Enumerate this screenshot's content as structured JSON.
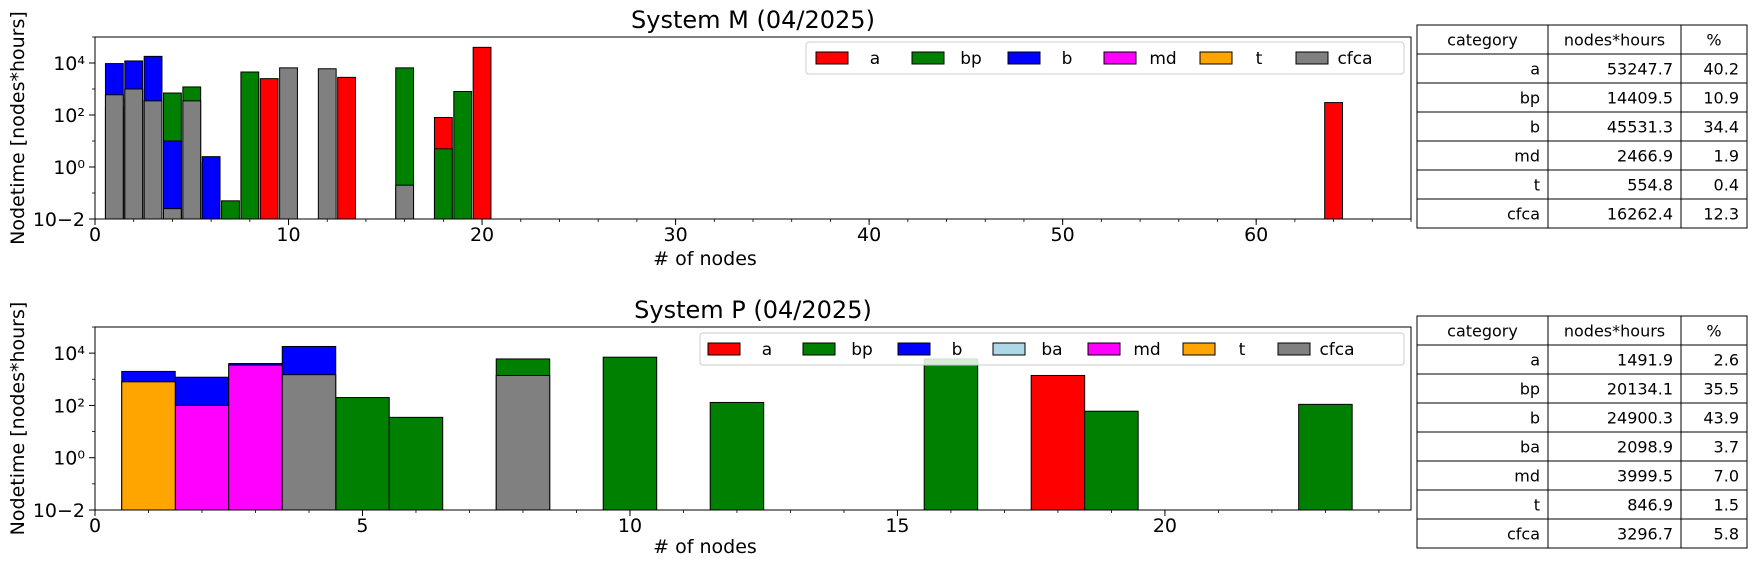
{
  "colors": {
    "a": "#ff0000",
    "bp": "#008000",
    "b": "#0000ff",
    "ba": "#add8e6",
    "md": "#ff00ff",
    "t": "#ffa500",
    "cfca": "#808080"
  },
  "chart_data": [
    {
      "type": "bar",
      "title": "System M (04/2025)",
      "xlabel": "# of nodes",
      "ylabel": "Nodetime [nodes*hours]",
      "yscale": "log",
      "ylim": [
        0.01,
        100000
      ],
      "xlim": [
        0,
        68
      ],
      "xticks": [
        0,
        10,
        20,
        30,
        40,
        50,
        60
      ],
      "xtick_labels": [
        "0",
        "10",
        "20",
        "30",
        "40",
        "50",
        "60"
      ],
      "yticks": [
        0.01,
        1,
        100,
        10000
      ],
      "ytick_labels": [
        "10−2",
        "10⁰",
        "10²",
        "10⁴"
      ],
      "legend": [
        "a",
        "bp",
        "b",
        "md",
        "t",
        "cfca"
      ],
      "legend_placement": "top-right",
      "grid": false,
      "x": [
        1,
        2,
        3,
        4,
        5,
        6,
        7,
        8,
        9,
        10,
        12,
        13,
        16,
        18,
        19,
        20,
        64
      ],
      "series": [
        {
          "name": "a",
          "values": [
            0,
            0,
            0,
            0,
            0,
            1.5,
            0,
            0,
            2500,
            0,
            0,
            2800,
            0,
            80,
            0,
            40000,
            300
          ]
        },
        {
          "name": "bp",
          "values": [
            0,
            0,
            0,
            700,
            1200,
            0,
            0.05,
            4500,
            0,
            0,
            0,
            0,
            6500,
            5,
            800,
            0,
            0
          ]
        },
        {
          "name": "b",
          "values": [
            9500,
            12000,
            18000,
            10,
            0,
            2.5,
            0,
            0,
            0,
            0,
            0,
            0,
            0,
            0,
            0,
            0,
            0
          ]
        },
        {
          "name": "md",
          "values": [
            200,
            400,
            0,
            0,
            0,
            0,
            0,
            0,
            0,
            0,
            0,
            0,
            0,
            0,
            0,
            0,
            0
          ]
        },
        {
          "name": "t",
          "values": [
            0,
            0,
            0,
            0,
            0,
            0,
            0,
            0,
            0,
            0,
            0,
            0,
            0,
            0,
            0,
            0,
            0
          ]
        },
        {
          "name": "cfca",
          "values": [
            600,
            1000,
            350,
            0.025,
            350,
            0,
            0,
            0,
            0,
            6500,
            6000,
            0,
            0.2,
            0,
            0,
            0,
            0
          ]
        }
      ],
      "table": {
        "headers": [
          "category",
          "nodes*hours",
          "%"
        ],
        "rows": [
          [
            "a",
            "53247.7",
            "40.2"
          ],
          [
            "bp",
            "14409.5",
            "10.9"
          ],
          [
            "b",
            "45531.3",
            "34.4"
          ],
          [
            "md",
            "2466.9",
            "1.9"
          ],
          [
            "t",
            "554.8",
            "0.4"
          ],
          [
            "cfca",
            "16262.4",
            "12.3"
          ]
        ]
      }
    },
    {
      "type": "bar",
      "title": "System P (04/2025)",
      "xlabel": "# of nodes",
      "ylabel": "Nodetime [nodes*hours]",
      "yscale": "log",
      "ylim": [
        0.01,
        100000
      ],
      "xlim": [
        0,
        24.6
      ],
      "xticks": [
        0,
        5,
        10,
        15,
        20
      ],
      "xtick_labels": [
        "0",
        "5",
        "10",
        "15",
        "20"
      ],
      "yticks": [
        0.01,
        1,
        100,
        10000
      ],
      "ytick_labels": [
        "10−2",
        "10⁰",
        "10²",
        "10⁴"
      ],
      "legend": [
        "a",
        "bp",
        "b",
        "ba",
        "md",
        "t",
        "cfca"
      ],
      "legend_placement": "top-right",
      "grid": false,
      "x": [
        1,
        2,
        3,
        4,
        5,
        6,
        8,
        10,
        12,
        16,
        18,
        19,
        23
      ],
      "series": [
        {
          "name": "a",
          "values": [
            0,
            0,
            0,
            0,
            0,
            0,
            0,
            0,
            0,
            0,
            1400,
            0,
            0
          ]
        },
        {
          "name": "bp",
          "values": [
            0,
            0,
            0,
            0,
            200,
            35,
            6000,
            7000,
            130,
            6000,
            0,
            60,
            110
          ]
        },
        {
          "name": "b",
          "values": [
            2000,
            1200,
            4000,
            18000,
            0,
            0,
            0,
            0,
            0,
            0,
            0,
            0,
            0
          ]
        },
        {
          "name": "ba",
          "values": [
            0,
            0,
            0,
            0,
            0,
            0,
            0,
            0,
            0,
            0,
            0,
            0,
            0
          ]
        },
        {
          "name": "md",
          "values": [
            0,
            100,
            3500,
            0,
            0,
            0,
            0,
            0,
            0,
            0,
            0,
            0,
            0
          ]
        },
        {
          "name": "t",
          "values": [
            800,
            0,
            0,
            0,
            0,
            0,
            0,
            0,
            0,
            0,
            0,
            0,
            0
          ]
        },
        {
          "name": "cfca",
          "values": [
            0,
            0,
            0,
            1500,
            0,
            0,
            1400,
            0,
            0,
            0,
            0,
            0,
            0
          ]
        }
      ],
      "table": {
        "headers": [
          "category",
          "nodes*hours",
          "%"
        ],
        "rows": [
          [
            "a",
            "1491.9",
            "2.6"
          ],
          [
            "bp",
            "20134.1",
            "35.5"
          ],
          [
            "b",
            "24900.3",
            "43.9"
          ],
          [
            "ba",
            "2098.9",
            "3.7"
          ],
          [
            "md",
            "3999.5",
            "7.0"
          ],
          [
            "t",
            "846.9",
            "1.5"
          ],
          [
            "cfca",
            "3296.7",
            "5.8"
          ]
        ]
      }
    }
  ]
}
